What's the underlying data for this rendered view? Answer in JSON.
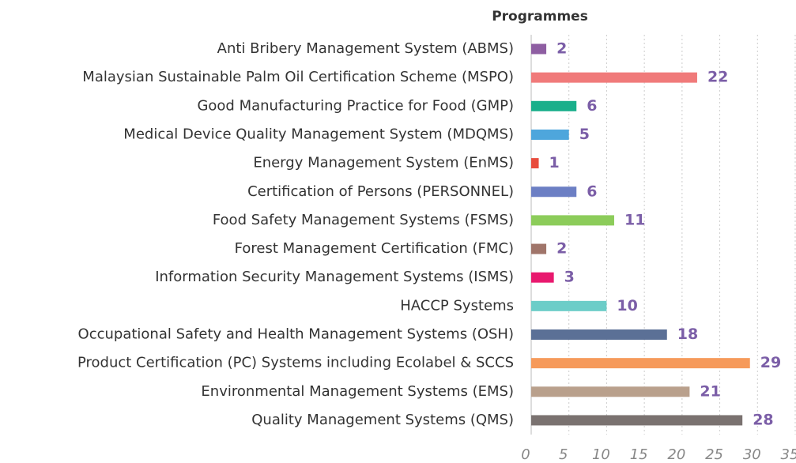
{
  "chart_data": {
    "type": "bar",
    "orientation": "horizontal",
    "title": "Programmes",
    "categories": [
      "Anti Bribery Management System (ABMS)",
      "Malaysian Sustainable Palm Oil Certification Scheme (MSPO)",
      "Good Manufacturing Practice for Food (GMP)",
      "Medical Device Quality Management System (MDQMS)",
      "Energy Management System (EnMS)",
      "Certification of Persons (PERSONNEL)",
      "Food Safety Management Systems (FSMS)",
      "Forest Management Certification (FMC)",
      "Information Security Management Systems (ISMS)",
      "HACCP Systems",
      "Occupational Safety and Health Management Systems (OSH)",
      "Product Certification (PC) Systems including Ecolabel & SCCS",
      "Environmental Management Systems (EMS)",
      "Quality Management Systems (QMS)"
    ],
    "values": [
      2,
      22,
      6,
      5,
      1,
      6,
      11,
      2,
      3,
      10,
      18,
      29,
      21,
      28
    ],
    "colors": [
      "#8e5ea2",
      "#f07a7a",
      "#1aaf8b",
      "#4ea6dc",
      "#e84c3d",
      "#6c7fc4",
      "#8ccc5a",
      "#a0756a",
      "#e8196e",
      "#6ccdc8",
      "#5b7096",
      "#f69a5a",
      "#b9a08c",
      "#7a7270"
    ],
    "label_color": "#7b5ea7",
    "xlim": [
      0,
      35
    ],
    "xticks": [
      0,
      5,
      10,
      15,
      20,
      25,
      30,
      35
    ],
    "grid": true
  }
}
